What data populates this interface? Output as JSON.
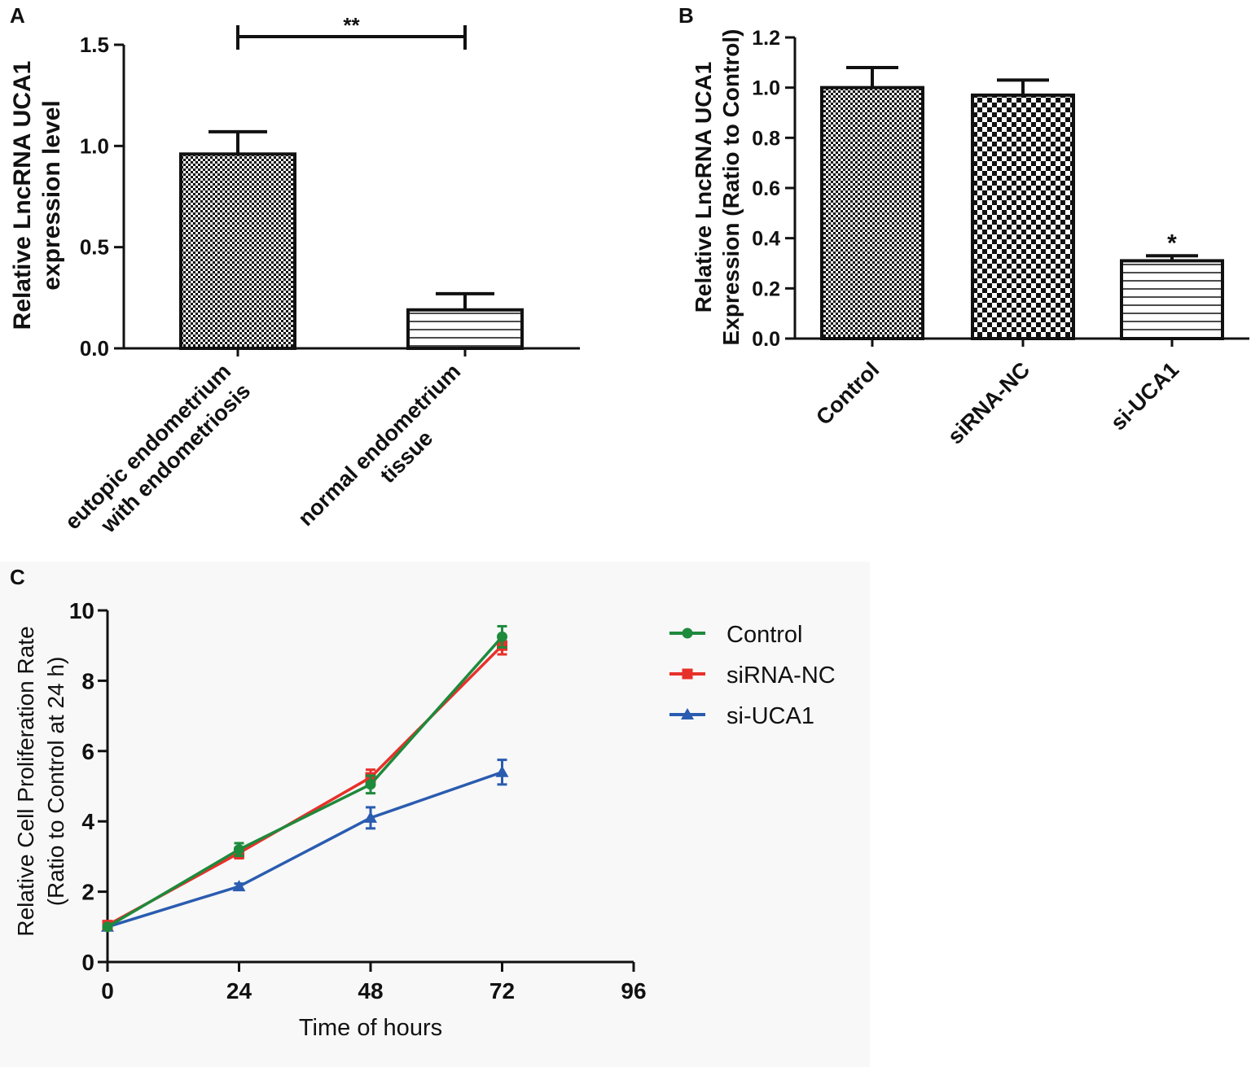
{
  "chart_data": [
    {
      "panel": "A",
      "type": "bar",
      "categories": [
        [
          "eutopic endometrium",
          "with endometriosis"
        ],
        [
          "normal endometrium",
          "tissue"
        ]
      ],
      "values": [
        0.96,
        0.19
      ],
      "errors": [
        0.11,
        0.08
      ],
      "patterns": [
        "dense-check",
        "horizontal-lines"
      ],
      "ylabel": [
        "Relative LncRNA UCA1",
        "expression level"
      ],
      "ylim": [
        0,
        1.5
      ],
      "yticks": [
        "0.0",
        "0.5",
        "1.0",
        "1.5"
      ],
      "significance": {
        "from": 0,
        "to": 1,
        "label": "**"
      }
    },
    {
      "panel": "B",
      "type": "bar",
      "categories": [
        "Control",
        "siRNA-NC",
        "si-UCA1"
      ],
      "values": [
        1.0,
        0.97,
        0.31
      ],
      "errors": [
        0.08,
        0.06,
        0.02
      ],
      "patterns": [
        "dense-check",
        "large-check",
        "horizontal-lines"
      ],
      "ylabel": [
        "Relative LncRNA UCA1",
        "Expression (Ratio to Control)"
      ],
      "ylim": [
        0,
        1.2
      ],
      "yticks": [
        "0.0",
        "0.2",
        "0.4",
        "0.6",
        "0.8",
        "1.0",
        "1.2"
      ],
      "annotations": [
        {
          "category": 2,
          "label": "*"
        }
      ]
    },
    {
      "panel": "C",
      "type": "line",
      "x": [
        0,
        24,
        48,
        72
      ],
      "series": [
        {
          "name": "Control",
          "color": "#1e8a3c",
          "marker": "circle",
          "values": [
            1.0,
            3.2,
            5.05,
            9.25
          ],
          "errors": [
            0.05,
            0.18,
            0.25,
            0.3
          ]
        },
        {
          "name": "siRNA-NC",
          "color": "#e8302a",
          "marker": "square",
          "values": [
            1.05,
            3.1,
            5.25,
            9.0
          ],
          "errors": [
            0.05,
            0.15,
            0.22,
            0.25
          ]
        },
        {
          "name": "si-UCA1",
          "color": "#2a5cb0",
          "marker": "triangle",
          "values": [
            1.0,
            2.15,
            4.1,
            5.4
          ],
          "errors": [
            0.05,
            0.08,
            0.3,
            0.35
          ]
        }
      ],
      "xlabel": "Time of hours",
      "ylabel": [
        "Relative Cell Proliferation Rate",
        "(Ratio to Control at 24 h)"
      ],
      "xlim": [
        0,
        96
      ],
      "ylim": [
        0,
        10
      ],
      "xticks": [
        "0",
        "24",
        "48",
        "72",
        "96"
      ],
      "yticks": [
        "0",
        "2",
        "4",
        "6",
        "8",
        "10"
      ],
      "legend": "right"
    }
  ],
  "panel_labels": [
    "A",
    "B",
    "C"
  ]
}
